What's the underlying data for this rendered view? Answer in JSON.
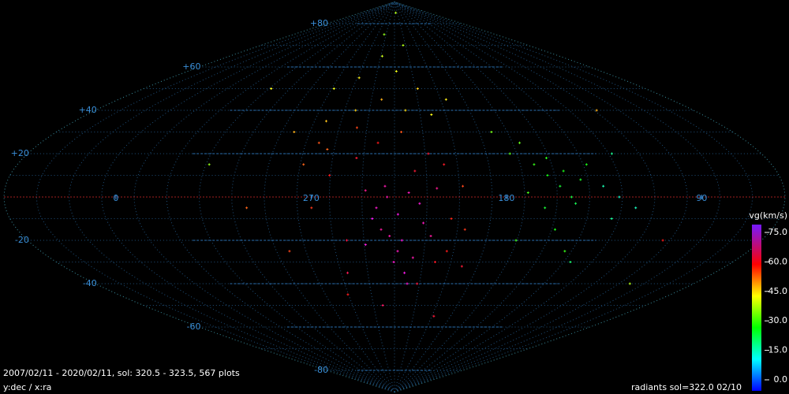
{
  "chart_data": {
    "type": "scatter",
    "projection": "sinusoidal",
    "xlabel": "y:dec / x:ra",
    "footer_left": "2007/02/11 - 2020/02/11,  sol: 320.5 - 323.5, 567 plots",
    "footer_right": "radiants sol=322.0 02/10",
    "colorbar_label": "vg(km/s)",
    "xticks": [
      0,
      270,
      180,
      90
    ],
    "yticks": [
      {
        "value": 80,
        "label": "+80"
      },
      {
        "value": 60,
        "label": "+60"
      },
      {
        "value": 40,
        "label": "+40"
      },
      {
        "value": 20,
        "label": "+20"
      },
      -20,
      -40,
      -60,
      -80
    ],
    "ylim": [
      -90,
      90
    ],
    "clim": [
      0,
      79
    ],
    "cticks": [
      {
        "value": 75,
        "label": "75.0"
      },
      {
        "value": 60,
        "label": "60.0"
      },
      {
        "value": 45,
        "label": "45.0"
      },
      {
        "value": 30,
        "label": "30.0"
      },
      {
        "value": 15,
        "label": "15.0"
      },
      {
        "value": 0,
        "label": "0.0"
      }
    ],
    "grid": true,
    "x": [
      240,
      235,
      230,
      225,
      238,
      228,
      222,
      232,
      245,
      218,
      226,
      236,
      220,
      242,
      214,
      230,
      224,
      234,
      212,
      246,
      250,
      262,
      255,
      270,
      210,
      205,
      200,
      215,
      240,
      228,
      265,
      258,
      218,
      205,
      198,
      275,
      252,
      222,
      208,
      262,
      195,
      270,
      255,
      240,
      225,
      210,
      270,
      260,
      230,
      215,
      285,
      198,
      245,
      275,
      220,
      160,
      155,
      165,
      150,
      158,
      145,
      170,
      152,
      162,
      148,
      140,
      175,
      168,
      155,
      145,
      180,
      172,
      135,
      128,
      130,
      125,
      120,
      138,
      320,
      300,
      285,
      100,
      90,
      200,
      225,
      250,
      320,
      110,
      240
    ],
    "y": [
      -5,
      0,
      -8,
      2,
      -15,
      -20,
      -28,
      -30,
      3,
      -12,
      -35,
      5,
      -3,
      -10,
      -18,
      -25,
      -40,
      -18,
      4,
      -22,
      18,
      10,
      -20,
      -5,
      -30,
      -10,
      5,
      20,
      25,
      30,
      22,
      -35,
      -40,
      -25,
      -15,
      15,
      32,
      12,
      15,
      -45,
      -32,
      25,
      40,
      45,
      40,
      38,
      35,
      55,
      58,
      50,
      30,
      45,
      65,
      50,
      70,
      10,
      5,
      15,
      0,
      18,
      8,
      2,
      12,
      -5,
      -3,
      15,
      20,
      25,
      -15,
      -25,
      30,
      -20,
      5,
      0,
      -10,
      20,
      -5,
      -30,
      15,
      -5,
      -25,
      -20,
      -40,
      -55,
      85,
      75,
      50,
      40,
      -50
    ],
    "values": [
      72,
      70,
      74,
      71,
      69,
      73,
      70,
      72,
      68,
      71,
      74,
      70,
      73,
      75,
      69,
      71,
      72,
      70,
      68,
      73,
      62,
      60,
      63,
      58,
      61,
      59,
      57,
      62,
      60,
      56,
      55,
      64,
      63,
      60,
      58,
      55,
      57,
      62,
      61,
      60,
      62,
      56,
      48,
      50,
      47,
      45,
      49,
      46,
      44,
      48,
      50,
      46,
      42,
      44,
      40,
      30,
      28,
      32,
      27,
      31,
      29,
      33,
      30,
      28,
      26,
      30,
      34,
      35,
      30,
      32,
      36,
      33,
      20,
      18,
      22,
      22,
      19,
      24,
      38,
      55,
      57,
      60,
      40,
      62,
      40,
      38,
      45,
      50,
      65
    ]
  }
}
